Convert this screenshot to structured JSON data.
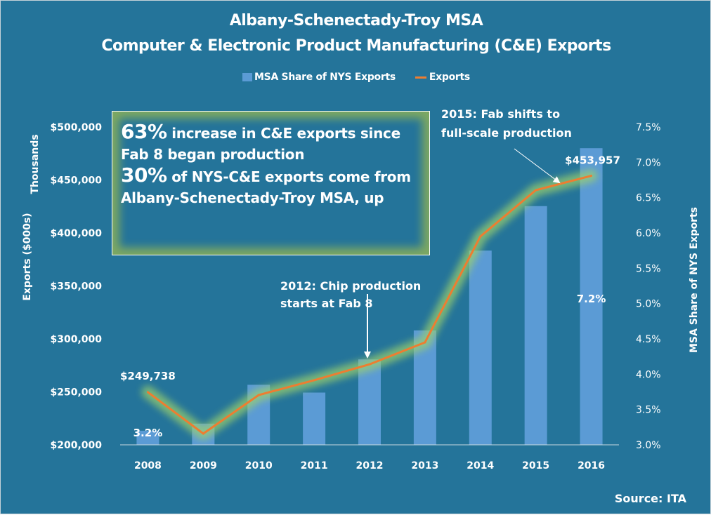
{
  "chart_data": {
    "type": "bar+line",
    "title": "Albany-Schenectady-Troy MSA",
    "subtitle": "Computer & Electronic Product Manufacturing (C&E) Exports",
    "categories": [
      "2008",
      "2009",
      "2010",
      "2011",
      "2012",
      "2013",
      "2014",
      "2015",
      "2016"
    ],
    "series": [
      {
        "name": "MSA Share of NYS Exports",
        "type": "bar",
        "axis": "right",
        "color": "#5b9bd5",
        "values": [
          3.2,
          3.3,
          3.85,
          3.74,
          4.21,
          4.62,
          5.75,
          6.38,
          7.2
        ],
        "unit": "%"
      },
      {
        "name": "Exports",
        "type": "line",
        "axis": "left",
        "color": "#ed7d31",
        "values": [
          249738,
          210600,
          247000,
          261000,
          276000,
          296700,
          396700,
          440400,
          453957
        ],
        "unit": "$000s"
      }
    ],
    "left_axis": {
      "label": "Exports ($000s)",
      "unit_label": "Thousands",
      "range": [
        200000,
        500000
      ],
      "ticks": [
        "$200,000",
        "$250,000",
        "$300,000",
        "$350,000",
        "$400,000",
        "$450,000",
        "$500,000"
      ]
    },
    "right_axis": {
      "label": "MSA Share of NYS Exports",
      "range": [
        3.0,
        7.5
      ],
      "ticks": [
        "3.0%",
        "3.5%",
        "4.0%",
        "4.5%",
        "5.0%",
        "5.5%",
        "6.0%",
        "6.5%",
        "7.0%",
        "7.5%"
      ]
    },
    "data_labels": {
      "export_first": "$249,738",
      "export_last": "$453,957",
      "share_first": "3.2%",
      "share_last": "7.2%"
    },
    "legend": {
      "position": "top",
      "entries": [
        "MSA Share of NYS Exports",
        "Exports"
      ]
    },
    "grid": false,
    "annotations": {
      "chip_2012": [
        "2012: Chip production",
        "starts at Fab 8"
      ],
      "fab_2015": [
        "2015: Fab shifts to",
        "full-scale production"
      ]
    }
  },
  "callout": {
    "stat1_value": "63%",
    "stat1_text": " increase in  C&E exports since",
    "stat1_text2": "Fab 8 began production",
    "stat2_value": "30%",
    "stat2_text": " of NYS-C&E exports come from",
    "stat2_text2": "Albany-Schenectady-Troy MSA, up"
  },
  "source": "Source: ITA"
}
